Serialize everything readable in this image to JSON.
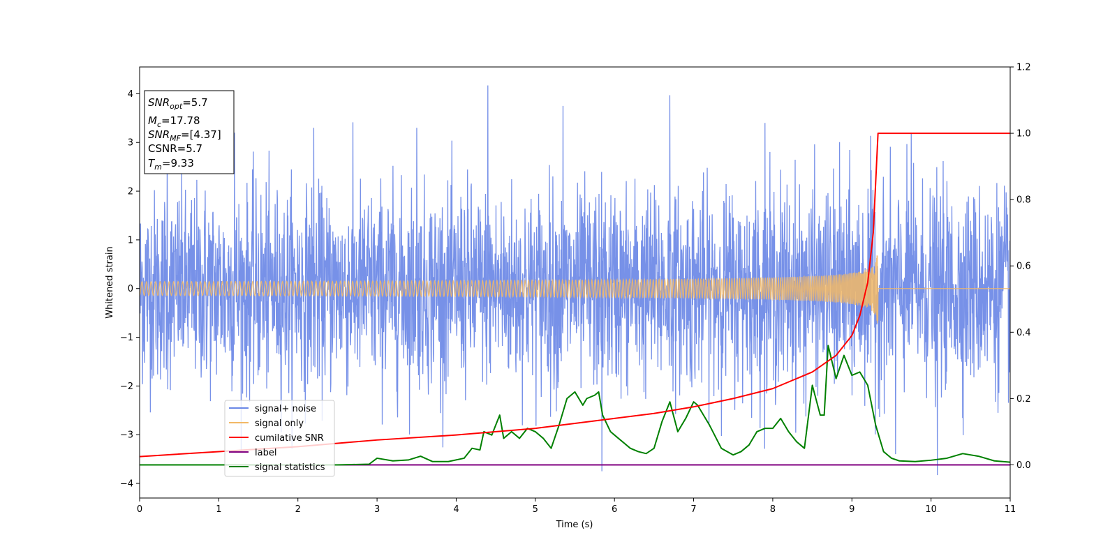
{
  "chart_data": {
    "type": "line",
    "xlabel": "Time (s)",
    "ylabel": "Whitened strain",
    "xlim": [
      0,
      11
    ],
    "ylim": [
      -4.3,
      4.55
    ],
    "y2lim": [
      -0.1,
      1.2
    ],
    "xticks": [
      "0",
      "1",
      "2",
      "3",
      "4",
      "5",
      "6",
      "7",
      "8",
      "9",
      "10",
      "11"
    ],
    "yticks": [
      "−4",
      "−3",
      "−2",
      "−1",
      "0",
      "1",
      "2",
      "3",
      "4"
    ],
    "y2ticks": [
      "0.0",
      "0.2",
      "0.4",
      "0.6",
      "0.8",
      "1.0",
      "1.2"
    ],
    "legend_position": "lower-left",
    "grid": false,
    "colors": {
      "signal_noise": "#6b88e6",
      "signal_only": "#f2b866",
      "cumulative_snr": "#ff0000",
      "label": "#800080",
      "signal_statistics": "#008000"
    },
    "info_box": {
      "snr_opt_main": "SNR",
      "snr_opt_sub": "opt",
      "snr_opt_value": "=5.7",
      "mc_main": "M",
      "mc_sub": "c",
      "mc_value": "=17.78",
      "snr_mf_main": "SNR",
      "snr_mf_sub": "MF",
      "snr_mf_value": "=[4.37]",
      "csnr": "CSNR=5.7",
      "tm_main": "T",
      "tm_sub": "m",
      "tm_value": "=9.33"
    },
    "series": [
      {
        "name": "signal+ noise",
        "axis": "left",
        "description_values": {
          "noise_std": 1.0,
          "max_peak": 4.17,
          "min_peak": -3.83
        },
        "peaks": [
          [
            0.35,
            3.0
          ],
          [
            1.2,
            3.2
          ],
          [
            2.2,
            3.3
          ],
          [
            3.5,
            3.3
          ],
          [
            4.4,
            4.17
          ],
          [
            5.35,
            3.75
          ],
          [
            6.7,
            3.97
          ],
          [
            7.9,
            3.4
          ],
          [
            9.75,
            3.2
          ],
          [
            5.84,
            -3.75
          ],
          [
            10.08,
            -3.83
          ],
          [
            9.55,
            -3.4
          ]
        ]
      },
      {
        "name": "signal only",
        "axis": "left",
        "merger_time": 9.33,
        "peak_amplitude": 0.98
      },
      {
        "name": "cumilative SNR",
        "axis": "right",
        "x": [
          0,
          1,
          2,
          3,
          4,
          5,
          6,
          6.5,
          7,
          7.5,
          8,
          8.5,
          8.8,
          9.0,
          9.1,
          9.2,
          9.27,
          9.3,
          9.33,
          11
        ],
        "y": [
          0.025,
          0.04,
          0.055,
          0.075,
          0.09,
          0.11,
          0.14,
          0.155,
          0.175,
          0.2,
          0.23,
          0.28,
          0.33,
          0.39,
          0.45,
          0.55,
          0.7,
          0.85,
          1.0,
          1.0
        ]
      },
      {
        "name": "label",
        "axis": "right",
        "x": [
          0,
          11
        ],
        "y": [
          0.0,
          0.0
        ]
      },
      {
        "name": "signal statistics",
        "axis": "right",
        "x": [
          0,
          0.5,
          1,
          1.5,
          2,
          2.5,
          2.9,
          3.0,
          3.2,
          3.4,
          3.55,
          3.7,
          3.9,
          4.1,
          4.2,
          4.3,
          4.35,
          4.45,
          4.55,
          4.6,
          4.7,
          4.8,
          4.9,
          5.0,
          5.1,
          5.2,
          5.3,
          5.4,
          5.5,
          5.6,
          5.65,
          5.75,
          5.8,
          5.85,
          5.95,
          6.0,
          6.1,
          6.2,
          6.3,
          6.4,
          6.5,
          6.6,
          6.7,
          6.8,
          6.9,
          7.0,
          7.05,
          7.1,
          7.2,
          7.35,
          7.5,
          7.6,
          7.7,
          7.8,
          7.9,
          8.0,
          8.1,
          8.2,
          8.3,
          8.4,
          8.5,
          8.6,
          8.65,
          8.7,
          8.8,
          8.9,
          9.0,
          9.1,
          9.2,
          9.3,
          9.4,
          9.5,
          9.6,
          9.8,
          10.0,
          10.2,
          10.4,
          10.6,
          10.8,
          11.0
        ],
        "y": [
          0.0,
          0.0,
          0.0,
          0.0,
          0.0,
          0.0,
          0.002,
          0.02,
          0.012,
          0.015,
          0.026,
          0.01,
          0.01,
          0.02,
          0.05,
          0.045,
          0.1,
          0.09,
          0.15,
          0.08,
          0.1,
          0.08,
          0.11,
          0.1,
          0.08,
          0.05,
          0.12,
          0.2,
          0.22,
          0.18,
          0.2,
          0.21,
          0.22,
          0.15,
          0.1,
          0.09,
          0.07,
          0.05,
          0.04,
          0.034,
          0.05,
          0.13,
          0.19,
          0.1,
          0.14,
          0.19,
          0.18,
          0.16,
          0.12,
          0.05,
          0.03,
          0.04,
          0.06,
          0.1,
          0.11,
          0.11,
          0.14,
          0.1,
          0.07,
          0.05,
          0.24,
          0.15,
          0.15,
          0.36,
          0.26,
          0.33,
          0.27,
          0.28,
          0.24,
          0.12,
          0.04,
          0.02,
          0.012,
          0.01,
          0.014,
          0.02,
          0.034,
          0.026,
          0.012,
          0.008
        ]
      }
    ]
  }
}
